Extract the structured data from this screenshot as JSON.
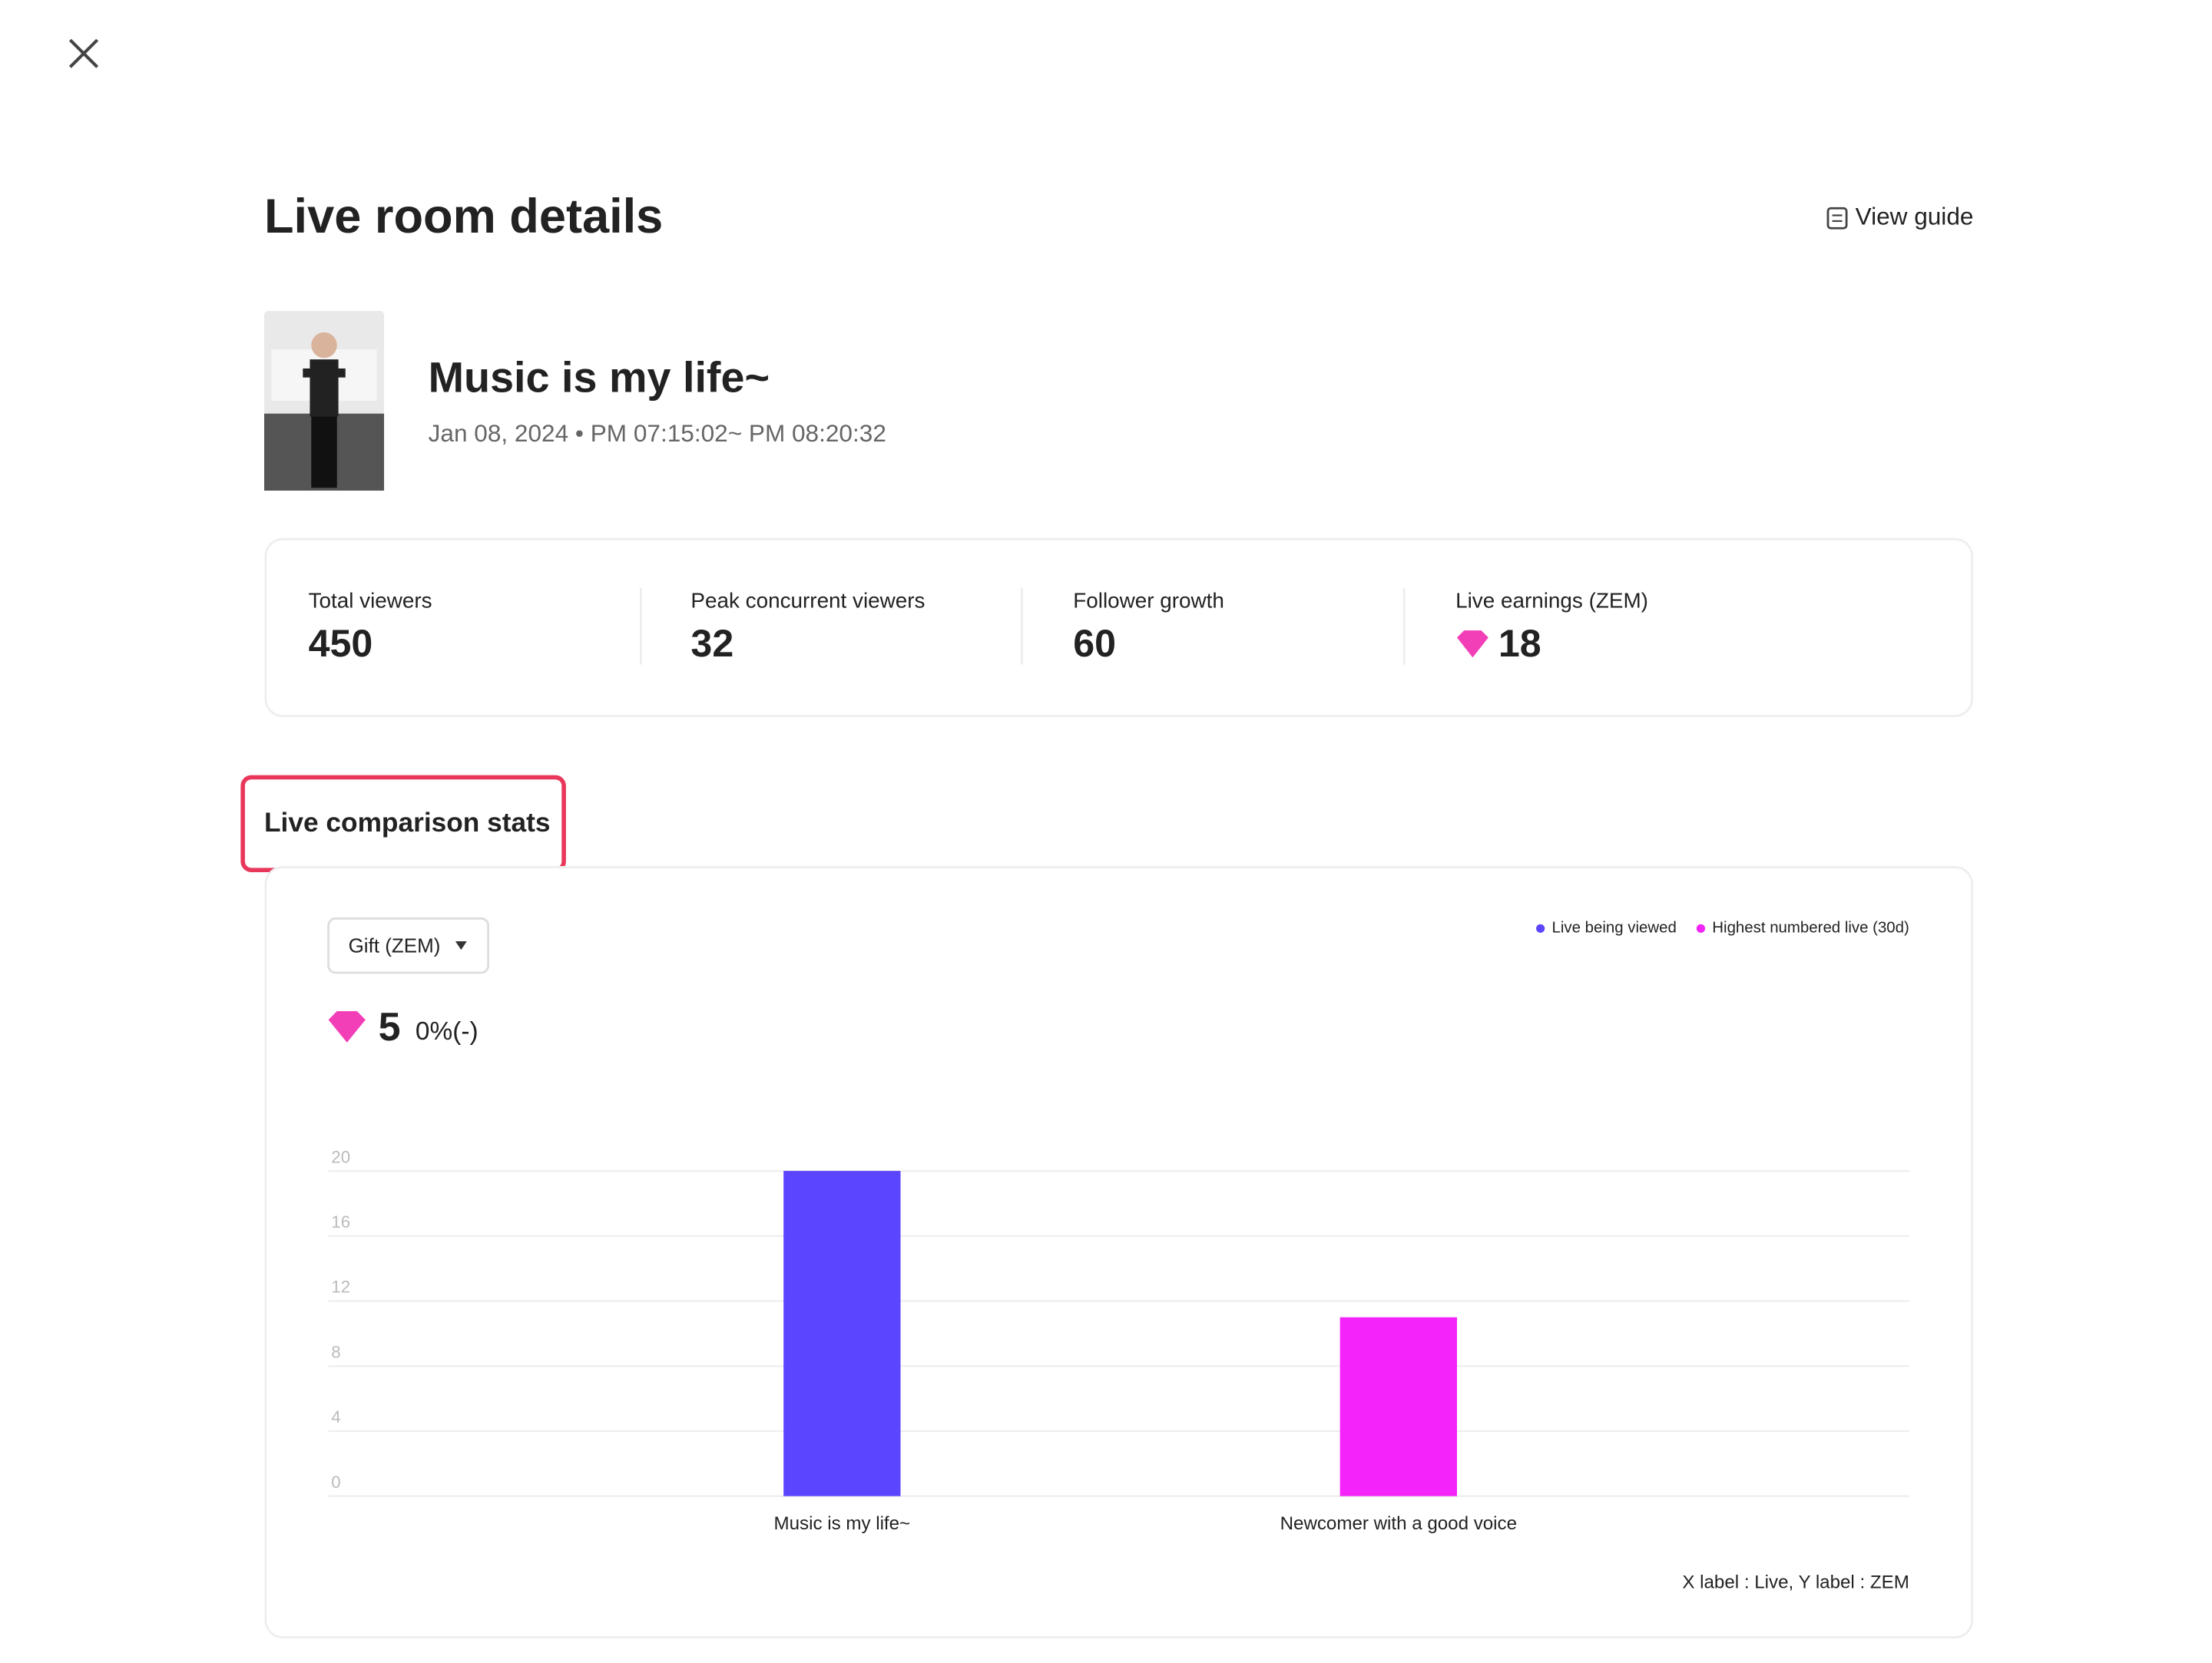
{
  "header": {
    "title": "Live room details",
    "guide": "View guide"
  },
  "live": {
    "title": "Music is my life~",
    "date": "Jan 08, 2024 • PM 07:15:02~ PM 08:20:32"
  },
  "stats": [
    {
      "label": "Total viewers",
      "value": "450"
    },
    {
      "label": "Peak concurrent viewers",
      "value": "32"
    },
    {
      "label": "Follower growth",
      "value": "60"
    },
    {
      "label": "Live earnings (ZEM)",
      "value": "18"
    }
  ],
  "section_title": "Live comparison stats",
  "metric": {
    "dropdown": "Gift (ZEM)",
    "value": "5",
    "change": "0%(-)"
  },
  "chart_data": {
    "type": "bar",
    "categories": [
      "Music is my life~",
      "Newcomer with a good voice"
    ],
    "values": [
      20,
      11
    ],
    "colors": [
      "#5b45ff",
      "#f423f9"
    ],
    "legend": [
      {
        "name": "Live being viewed",
        "color": "#5b45ff"
      },
      {
        "name": "Highest numbered live (30d)",
        "color": "#f423f9"
      }
    ],
    "ylim": [
      0,
      20
    ],
    "yticks": [
      0,
      4,
      8,
      12,
      16,
      20
    ],
    "grid": true,
    "footnote": "X label : Live, Y label : ZEM"
  }
}
